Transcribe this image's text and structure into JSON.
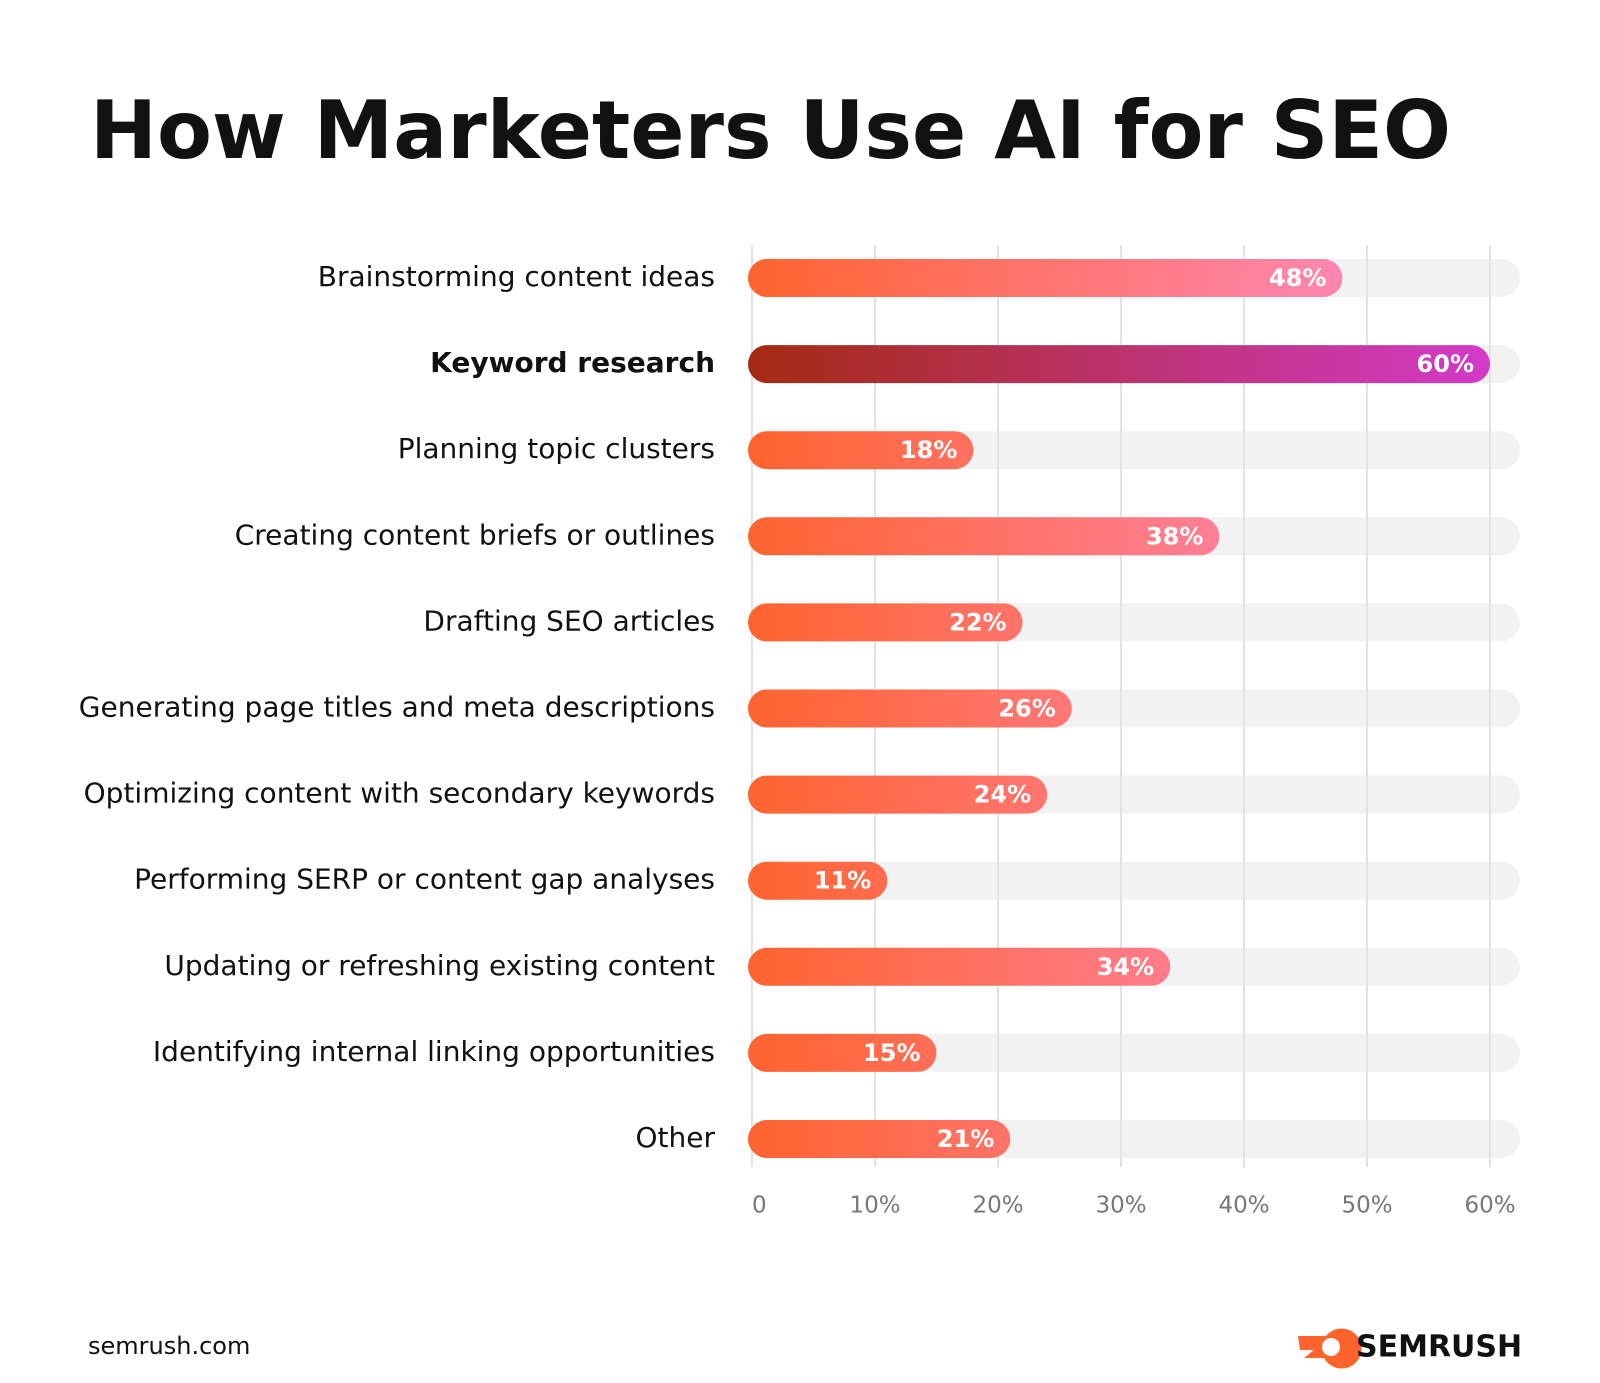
{
  "chart_data": {
    "type": "bar",
    "orientation": "horizontal",
    "title": "How Marketers Use AI for SEO",
    "categories": [
      "Brainstorming content ideas",
      "Keyword research",
      "Planning topic clusters",
      "Creating content briefs or outlines",
      "Drafting SEO articles",
      "Generating page titles and meta descriptions",
      "Optimizing content with secondary keywords",
      "Performing SERP or content gap analyses",
      "Updating or refreshing existing content",
      "Identifying internal linking opportunities",
      "Other"
    ],
    "values": [
      48,
      60,
      18,
      38,
      22,
      26,
      24,
      11,
      34,
      15,
      21
    ],
    "value_labels": [
      "48%",
      "60%",
      "18%",
      "38%",
      "22%",
      "26%",
      "24%",
      "11%",
      "34%",
      "15%",
      "21%"
    ],
    "bar_gradient": [
      "#ff6430",
      "#ff8fd0"
    ],
    "highlight_index": 1,
    "highlight_gradient": [
      "#a52a12",
      "#d23bc8"
    ],
    "xlim": [
      0,
      60
    ],
    "xticks": [
      0,
      {
        "value": 10,
        "label": "10%"
      },
      {
        "value": 20,
        "label": "20%"
      },
      {
        "value": 30,
        "label": "30%"
      },
      {
        "value": 40,
        "label": "40%"
      },
      {
        "value": 50,
        "label": "50%"
      },
      {
        "value": 60,
        "label": "60%"
      }
    ],
    "grid": true,
    "source": "semrush.com",
    "brand": "SEMRUSH"
  }
}
